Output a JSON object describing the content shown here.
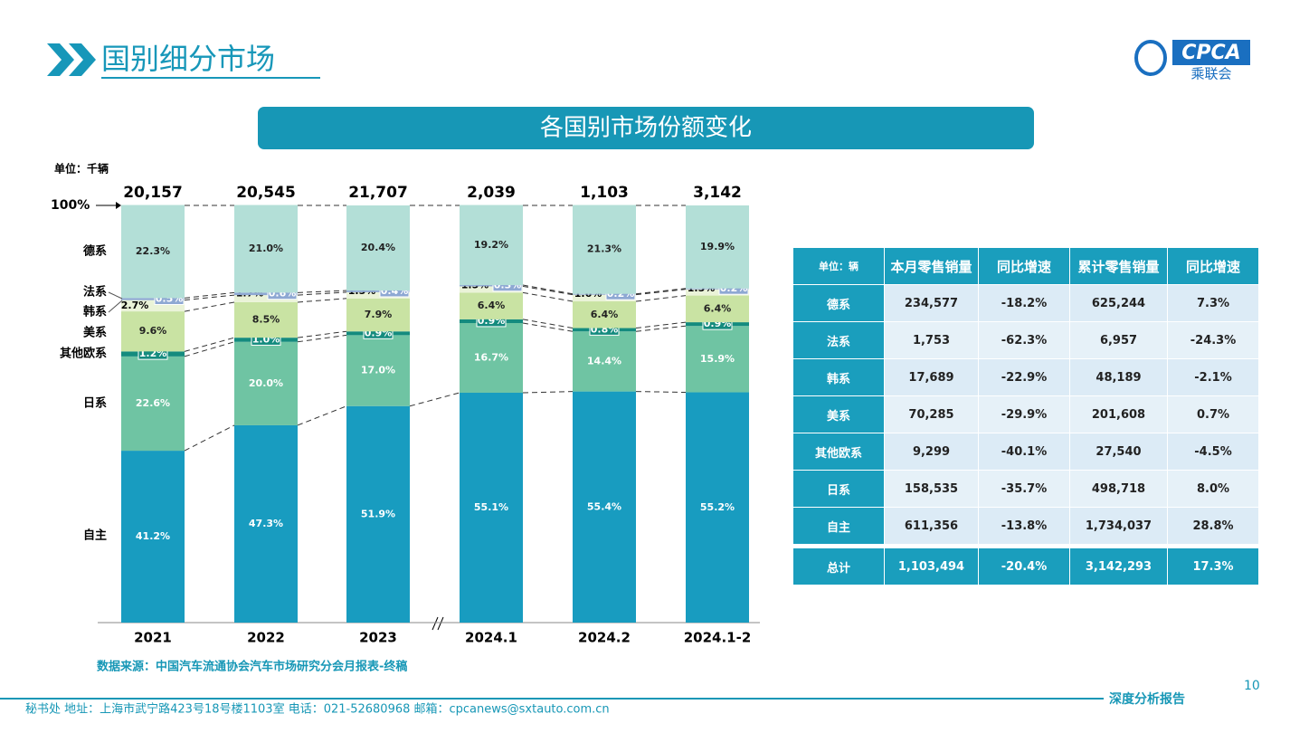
{
  "header": {
    "title": "国别细分市场",
    "logo": "CPCA",
    "logo_sub": "乘联会"
  },
  "banner": "各国别市场份额变化",
  "chart_data": {
    "type": "stacked_bar",
    "unit": "单位：千辆",
    "categories": [
      "2021",
      "2022",
      "2023",
      "2024.1",
      "2024.2",
      "2024.1-2"
    ],
    "ylim": [
      0,
      100
    ],
    "yticks": [
      {
        "value": 100,
        "label": "100%"
      }
    ],
    "totals": [
      {
        "value": 20157,
        "label": "20,157"
      },
      {
        "value": 20545,
        "label": "20,545"
      },
      {
        "value": 21707,
        "label": "21,707"
      },
      {
        "value": 2039,
        "label": "2,039"
      },
      {
        "value": 1103,
        "label": "1,103"
      },
      {
        "value": 3142,
        "label": "3,142"
      }
    ],
    "series": [
      {
        "name": "自主",
        "color": "#189cc0",
        "values": [
          41.2,
          47.3,
          51.9,
          55.1,
          55.4,
          55.2
        ],
        "value_labels": [
          "41.2%",
          "47.3%",
          "51.9%",
          "55.1%",
          "55.4%",
          "55.2%"
        ]
      },
      {
        "name": "日系",
        "color": "#6fc4a3",
        "values": [
          22.6,
          20.0,
          17.0,
          16.7,
          14.4,
          15.9
        ],
        "value_labels": [
          "22.6%",
          "20.0%",
          "17.0%",
          "16.7%",
          "14.4%",
          "15.9%"
        ]
      },
      {
        "name": "其他欧系",
        "color": "#148b7e",
        "values": [
          1.2,
          1.0,
          0.9,
          0.9,
          0.8,
          0.9
        ],
        "value_labels": [
          "1.2%",
          "1.0%",
          "0.9%",
          "0.9%",
          "0.8%",
          "0.9%"
        ]
      },
      {
        "name": "美系",
        "color": "#c9e3a3",
        "values": [
          9.6,
          8.5,
          7.9,
          6.4,
          6.4,
          6.4
        ],
        "value_labels": [
          "9.6%",
          "8.5%",
          "7.9%",
          "6.4%",
          "6.4%",
          "6.4%"
        ]
      },
      {
        "name": "韩系",
        "color": "#eaf3d8",
        "values": [
          2.7,
          1.7,
          1.5,
          1.5,
          1.6,
          1.5
        ],
        "value_labels": [
          "2.7%",
          "1.7%",
          "1.5%",
          "1.5%",
          "1.6%",
          "1.5%"
        ]
      },
      {
        "name": "法系",
        "color": "#8ea8d3",
        "values": [
          0.5,
          0.6,
          0.4,
          0.3,
          0.2,
          0.2
        ],
        "value_labels": [
          "0.5%",
          "0.6%",
          "0.4%",
          "0.3%",
          "0.2%",
          "0.2%"
        ]
      },
      {
        "name": "德系",
        "color": "#b3dfd7",
        "values": [
          22.3,
          21.0,
          20.4,
          19.2,
          21.3,
          19.9
        ],
        "value_labels": [
          "22.3%",
          "21.0%",
          "20.4%",
          "19.2%",
          "21.3%",
          "19.9%"
        ]
      }
    ],
    "source": "数据来源：中国汽车流通协会汽车市场研究分会月报表-终稿"
  },
  "table": {
    "header": [
      "单位：辆",
      "本月零售销量",
      "同比增速",
      "累计零售销量",
      "同比增速"
    ],
    "rows": [
      [
        "德系",
        "234,577",
        "-18.2%",
        "625,244",
        "7.3%"
      ],
      [
        "法系",
        "1,753",
        "-62.3%",
        "6,957",
        "-24.3%"
      ],
      [
        "韩系",
        "17,689",
        "-22.9%",
        "48,189",
        "-2.1%"
      ],
      [
        "美系",
        "70,285",
        "-29.9%",
        "201,608",
        "0.7%"
      ],
      [
        "其他欧系",
        "9,299",
        "-40.1%",
        "27,540",
        "-4.5%"
      ],
      [
        "日系",
        "158,535",
        "-35.7%",
        "498,718",
        "8.0%"
      ],
      [
        "自主",
        "611,356",
        "-13.8%",
        "1,734,037",
        "28.8%"
      ],
      [
        "总计",
        "1,103,494",
        "-20.4%",
        "3,142,293",
        "17.3%"
      ]
    ]
  },
  "footer": {
    "address": "秘书处   地址：上海市武宁路423号18号楼1103室    电话：021-52680968    邮箱：cpcanews@sxtauto.com.cn",
    "tag": "深度分析报告",
    "page": "10"
  }
}
